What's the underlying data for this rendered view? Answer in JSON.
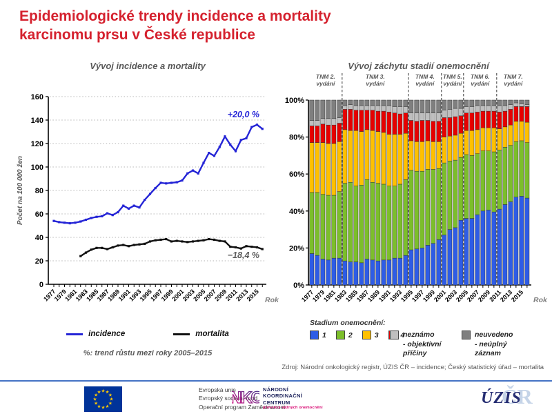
{
  "slide": {
    "title_line1": "Epidemiologické trendy incidence a mortality",
    "title_line2": "karcinomu prsu v České republice",
    "source": "Zdroj: Národní onkologický registr, ÚZIS ČR – incidence; Český statistický úřad – mortalita"
  },
  "colors": {
    "title_red": "#D5212E",
    "chart_title_gray": "#595959",
    "incidence_blue": "#2424D6",
    "mortalita_black": "#111111",
    "stage1_blue": "#2E5CE6",
    "stage2_green": "#7CBE2B",
    "stage3_yellow": "#FFC000",
    "stage4_red": "#E60000",
    "unknown_gray": "#BFBFBF",
    "notstated_gray": "#7F7F7F",
    "footer_rule_blue": "#4472C4"
  },
  "chart_data": [
    {
      "type": "line",
      "title": "Vývoj incidence a mortality",
      "ylabel": "Počet na 100 000 žen",
      "xlabel": "Rok",
      "ylim": [
        0,
        160
      ],
      "ytick_step": 20,
      "grid": true,
      "years": [
        1977,
        1978,
        1979,
        1980,
        1981,
        1982,
        1983,
        1984,
        1985,
        1986,
        1987,
        1988,
        1989,
        1990,
        1991,
        1992,
        1993,
        1994,
        1995,
        1996,
        1997,
        1998,
        1999,
        2000,
        2001,
        2002,
        2003,
        2004,
        2005,
        2006,
        2007,
        2008,
        2009,
        2010,
        2011,
        2012,
        2013,
        2014,
        2015,
        2016
      ],
      "x_label_every": 2,
      "series": [
        {
          "name": "incidence",
          "color": "#2424D6",
          "values": [
            54,
            53,
            52.5,
            52,
            52.5,
            53.5,
            55,
            56.5,
            57.5,
            58,
            60.5,
            59,
            61.5,
            67,
            64.5,
            67,
            65.5,
            72,
            77,
            82,
            86.5,
            86,
            86.5,
            87,
            88.5,
            94.5,
            97,
            94.5,
            103.5,
            112,
            109.5,
            117,
            126,
            119,
            113.5,
            123,
            124.5,
            134,
            136,
            132.5
          ]
        },
        {
          "name": "mortalita",
          "color": "#111111",
          "values": [
            null,
            null,
            null,
            null,
            null,
            24,
            27,
            29.5,
            31,
            31,
            30,
            31.5,
            33,
            33.5,
            32.5,
            33.5,
            34,
            34.5,
            36.5,
            37.5,
            38,
            38.5,
            36.5,
            37,
            36.5,
            36,
            36.5,
            37,
            37.5,
            38.5,
            38,
            37,
            36.5,
            32,
            31.5,
            30.5,
            32.5,
            32,
            31.5,
            30
          ]
        }
      ],
      "annotations": [
        {
          "text": "+20,0 %",
          "series": "incidence",
          "color": "#2424D6"
        },
        {
          "text": "−18,4 %",
          "series": "mortalita",
          "color": "#595959"
        }
      ],
      "note": "%: trend růstu mezi roky 2005–2015"
    },
    {
      "type": "bar",
      "stacked": true,
      "title": "Vývoj záchytu stadií onemocnění",
      "xlabel": "Rok",
      "ylim": [
        0,
        100
      ],
      "ytick_step": 20,
      "ytick_suffix": "%",
      "years": [
        1977,
        1978,
        1979,
        1980,
        1981,
        1982,
        1983,
        1984,
        1985,
        1986,
        1987,
        1988,
        1989,
        1990,
        1991,
        1992,
        1993,
        1994,
        1995,
        1996,
        1997,
        1998,
        1999,
        2000,
        2001,
        2002,
        2003,
        2004,
        2005,
        2006,
        2007,
        2008,
        2009,
        2010,
        2011,
        2012,
        2013,
        2014,
        2015,
        2016
      ],
      "x_label_every": 2,
      "series": [
        {
          "name": "1",
          "color": "#2E5CE6",
          "values": [
            17,
            16,
            14,
            13.5,
            14.5,
            14.5,
            13,
            12.5,
            12.5,
            12,
            14,
            13.5,
            13,
            13.5,
            13.5,
            14.5,
            14.5,
            16,
            19,
            19.5,
            20,
            21.5,
            22.5,
            24.5,
            27,
            30,
            31,
            35,
            36,
            36,
            38,
            40,
            40.5,
            39.5,
            41,
            43.5,
            45,
            47.5,
            48,
            47
          ]
        },
        {
          "name": "2",
          "color": "#7CBE2B",
          "values": [
            33,
            34,
            35,
            35,
            34,
            36,
            42,
            43,
            41,
            42,
            43,
            42,
            42,
            41,
            40,
            39,
            40,
            41,
            43,
            42,
            41.5,
            41,
            40,
            38.5,
            39,
            37,
            36.5,
            34,
            34.5,
            34,
            33,
            32.5,
            32,
            32.5,
            32,
            31,
            30.5,
            30,
            30,
            30
          ]
        },
        {
          "name": "3",
          "color": "#FFC000",
          "values": [
            27,
            27,
            28,
            28,
            28,
            27,
            29,
            28,
            30,
            29,
            27,
            28,
            28,
            28,
            28,
            28,
            27,
            25,
            16,
            16,
            16,
            15.5,
            15,
            14.5,
            14,
            13.5,
            13.5,
            13,
            13,
            13.5,
            13,
            12.5,
            12.5,
            13,
            11.5,
            11,
            11,
            11,
            10.5,
            11
          ]
        },
        {
          "name": "4",
          "color": "#E60000",
          "values": [
            9,
            9,
            10,
            10,
            10,
            10,
            11,
            11.5,
            11,
            11.5,
            10.5,
            11,
            11,
            11.5,
            12,
            11.5,
            11,
            11,
            11,
            11,
            11.5,
            11,
            11,
            11,
            10.5,
            10,
            10,
            9.5,
            9.5,
            9.5,
            9.5,
            9,
            9,
            9,
            9,
            8.5,
            8.5,
            8,
            8,
            8.5
          ]
        },
        {
          "name": "neznámo - objektivní příčiny",
          "color": "#BFBFBF",
          "values": [
            3,
            3,
            3,
            3.5,
            3.5,
            3,
            2,
            2.5,
            2.5,
            2.5,
            2.5,
            2.5,
            3,
            3,
            3.5,
            3.5,
            4,
            3.5,
            4,
            4.5,
            4,
            4,
            4.5,
            4.5,
            4,
            4.5,
            4.5,
            4,
            3.5,
            3.5,
            3.5,
            3,
            3,
            3,
            3.5,
            3,
            2.5,
            2,
            1.5,
            1
          ]
        },
        {
          "name": "neuvedeno - neúplný záznam",
          "color": "#7F7F7F",
          "values": [
            11,
            11,
            10,
            10,
            10,
            9.5,
            3,
            2.5,
            3,
            3,
            3,
            3,
            3,
            3,
            3,
            3.5,
            3.5,
            3.5,
            7,
            7,
            7,
            7,
            7,
            7,
            5.5,
            5,
            4.5,
            4.5,
            3.5,
            3.5,
            3,
            3,
            3,
            3,
            3,
            3,
            2.5,
            1.5,
            2,
            2.5
          ]
        }
      ],
      "eras": [
        {
          "line1": "TNM 2.",
          "line2": "vydání",
          "start": 1977,
          "end": 1982
        },
        {
          "line1": "TNM 3.",
          "line2": "vydání",
          "start": 1983,
          "end": 1994
        },
        {
          "line1": "TNM 4.",
          "line2": "vydání",
          "start": 1995,
          "end": 2000
        },
        {
          "line1": "TNM 5.",
          "line2": "vydání",
          "start": 2001,
          "end": 2004
        },
        {
          "line1": "TNM 6.",
          "line2": "vydání",
          "start": 2005,
          "end": 2010
        },
        {
          "line1": "TNM 7.",
          "line2": "vydání",
          "start": 2011,
          "end": 2016
        }
      ]
    }
  ],
  "legend_left": {
    "items": [
      {
        "label": "incidence",
        "color": "#2424D6"
      },
      {
        "label": "mortalita",
        "color": "#111111"
      }
    ],
    "note": "%: trend růstu mezi roky 2005–2015"
  },
  "legend_right": {
    "heading": "Stadium  onemocnění:",
    "stages": [
      {
        "label": "1",
        "color": "#2E5CE6"
      },
      {
        "label": "2",
        "color": "#7CBE2B"
      },
      {
        "label": "3",
        "color": "#FFC000"
      },
      {
        "label": "4",
        "color": "#E60000"
      }
    ],
    "unknown": {
      "color": "#BFBFBF",
      "lines": [
        "neznámo",
        "- objektivní",
        "příčiny"
      ]
    },
    "notstated": {
      "color": "#7F7F7F",
      "lines": [
        "neuvedeno",
        "- neúplný",
        "záznam"
      ]
    }
  },
  "footer": {
    "eu_lines": [
      "Evropská unie",
      "Evropský sociální fond",
      "Operační program Zaměstnanost"
    ],
    "nkc_abbr": "NKC",
    "nkc_lines": [
      "NÁRODNÍ",
      "KOORDINAČNÍ",
      "CENTRUM"
    ],
    "nkc_sub": "prevence vážných onemocnění",
    "uzis_text": "ÚZIS",
    "uzis_watermark": "ČR"
  }
}
